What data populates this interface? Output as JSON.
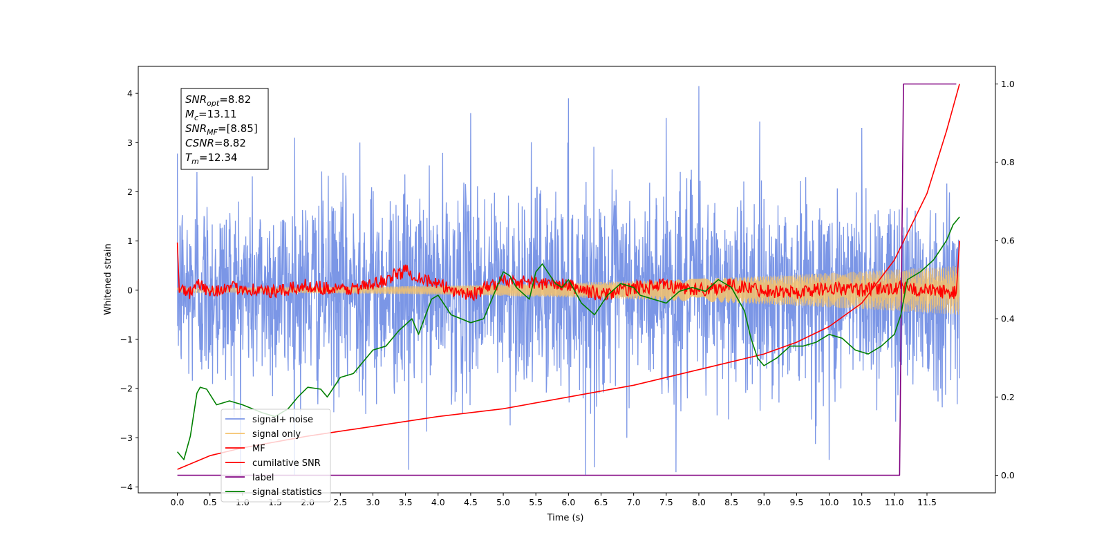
{
  "chart_data": {
    "type": "line",
    "xlabel": "Time (s)",
    "ylabel": "Whitened strain",
    "xlim": [
      -0.6,
      12.55
    ],
    "ylim": [
      -4.12,
      4.55
    ],
    "y2lim": [
      -0.045,
      1.045
    ],
    "xticks": [
      0.0,
      0.5,
      1.0,
      1.5,
      2.0,
      2.5,
      3.0,
      3.5,
      4.0,
      4.5,
      5.0,
      5.5,
      6.0,
      6.5,
      7.0,
      7.5,
      8.0,
      8.5,
      9.0,
      9.5,
      10.0,
      10.5,
      11.0,
      11.5
    ],
    "xtick_labels": [
      "0.0",
      "0.5",
      "1.0",
      "1.5",
      "2.0",
      "2.5",
      "3.0",
      "3.5",
      "4.0",
      "4.5",
      "5.0",
      "5.5",
      "6.0",
      "6.5",
      "7.0",
      "7.5",
      "8.0",
      "8.5",
      "9.0",
      "9.5",
      "10.0",
      "10.5",
      "11.0",
      "11.5"
    ],
    "yticks": [
      -4,
      -3,
      -2,
      -1,
      0,
      1,
      2,
      3,
      4
    ],
    "ytick_labels": [
      "−4",
      "−3",
      "−2",
      "−1",
      "0",
      "1",
      "2",
      "3",
      "4"
    ],
    "y2ticks": [
      0.0,
      0.2,
      0.4,
      0.6,
      0.8,
      1.0
    ],
    "y2tick_labels": [
      "0.0",
      "0.2",
      "0.4",
      "0.6",
      "0.8",
      "1.0"
    ],
    "grid": false,
    "legend_position": "lower-left",
    "annotation": {
      "lines": [
        {
          "main": "SNR",
          "sub": "opt",
          "value": "=8.82"
        },
        {
          "main": "M",
          "sub": "c",
          "value": "=13.11"
        },
        {
          "main": "SNR",
          "sub": "MF",
          "value": "=[8.85]"
        },
        {
          "main": "CSNR",
          "sub": "",
          "value": "=8.82"
        },
        {
          "main": "T",
          "sub": "m",
          "value": "=12.34"
        }
      ]
    },
    "series": [
      {
        "name": "signal+ noise",
        "axis": "left",
        "color": "#7b96e6",
        "description_values": {
          "x_start": 0.0,
          "x_end": 12.0,
          "amplitude_typical": 1.0,
          "peaks": [
            [
              0.3,
              2.4
            ],
            [
              1.8,
              3.1
            ],
            [
              2.8,
              3.0
            ],
            [
              4.5,
              3.6
            ],
            [
              6.0,
              3.9
            ],
            [
              7.5,
              3.5
            ],
            [
              8.0,
              4.15
            ],
            [
              10.5,
              3.3
            ],
            [
              3.55,
              -3.65
            ],
            [
              6.4,
              -3.6
            ],
            [
              7.65,
              -3.7
            ],
            [
              10.0,
              -3.45
            ]
          ]
        }
      },
      {
        "name": "signal only",
        "axis": "left",
        "color": "#f5c26b",
        "chirp": {
          "x_start": 0.0,
          "x_end": 12.0,
          "amplitude_start": 0.05,
          "amplitude_end": 0.5
        }
      },
      {
        "name": "MF",
        "axis": "left",
        "color": "#ff0000",
        "x": [
          0.0,
          0.03,
          0.08,
          0.15,
          0.3,
          0.5,
          1.0,
          1.5,
          2.0,
          2.5,
          3.0,
          3.5,
          4.0,
          4.5,
          5.0,
          5.5,
          6.0,
          6.5,
          7.0,
          7.5,
          8.0,
          8.5,
          9.0,
          9.5,
          10.0,
          10.5,
          11.0,
          11.5,
          11.95,
          12.0
        ],
        "y": [
          0.97,
          -0.05,
          0.1,
          -0.1,
          0.1,
          0.0,
          0.05,
          -0.05,
          0.1,
          0.0,
          0.1,
          0.4,
          0.1,
          -0.1,
          0.2,
          0.15,
          0.1,
          -0.1,
          0.05,
          0.1,
          0.0,
          0.1,
          0.0,
          -0.05,
          0.05,
          0.0,
          0.05,
          0.0,
          -0.05,
          1.0
        ]
      },
      {
        "name": "cumilative SNR",
        "axis": "right",
        "color": "#ff0000",
        "x": [
          0.0,
          0.5,
          1.0,
          2.0,
          3.0,
          4.0,
          5.0,
          6.0,
          7.0,
          8.0,
          9.0,
          9.5,
          10.0,
          10.5,
          11.0,
          11.5,
          11.8,
          12.0
        ],
        "y": [
          0.015,
          0.05,
          0.07,
          0.1,
          0.125,
          0.15,
          0.17,
          0.2,
          0.23,
          0.27,
          0.31,
          0.34,
          0.38,
          0.44,
          0.55,
          0.72,
          0.88,
          1.0
        ]
      },
      {
        "name": "label",
        "axis": "right",
        "color": "#800080",
        "x": [
          0.0,
          11.08,
          11.14,
          11.95
        ],
        "y": [
          0.0,
          0.0,
          1.0,
          1.0
        ]
      },
      {
        "name": "signal statistics",
        "axis": "right",
        "color": "#008000",
        "x": [
          0.0,
          0.1,
          0.2,
          0.3,
          0.35,
          0.45,
          0.6,
          0.8,
          1.0,
          1.3,
          1.5,
          1.7,
          1.85,
          2.0,
          2.2,
          2.3,
          2.5,
          2.7,
          2.9,
          3.0,
          3.2,
          3.4,
          3.6,
          3.7,
          3.9,
          4.0,
          4.2,
          4.5,
          4.7,
          4.9,
          5.0,
          5.1,
          5.2,
          5.4,
          5.5,
          5.6,
          5.8,
          5.9,
          6.0,
          6.2,
          6.4,
          6.6,
          6.8,
          7.0,
          7.1,
          7.3,
          7.5,
          7.7,
          7.9,
          8.1,
          8.3,
          8.5,
          8.7,
          8.8,
          8.9,
          9.0,
          9.2,
          9.4,
          9.6,
          9.8,
          10.0,
          10.2,
          10.4,
          10.6,
          10.8,
          11.0,
          11.1,
          11.2,
          11.4,
          11.6,
          11.8,
          11.9,
          12.0
        ],
        "y": [
          0.06,
          0.04,
          0.1,
          0.21,
          0.225,
          0.22,
          0.18,
          0.19,
          0.18,
          0.16,
          0.15,
          0.17,
          0.2,
          0.225,
          0.22,
          0.2,
          0.25,
          0.26,
          0.3,
          0.32,
          0.33,
          0.37,
          0.4,
          0.36,
          0.45,
          0.46,
          0.41,
          0.39,
          0.4,
          0.48,
          0.52,
          0.51,
          0.48,
          0.45,
          0.52,
          0.54,
          0.49,
          0.48,
          0.5,
          0.44,
          0.41,
          0.46,
          0.49,
          0.48,
          0.46,
          0.45,
          0.44,
          0.47,
          0.48,
          0.47,
          0.5,
          0.48,
          0.42,
          0.35,
          0.3,
          0.28,
          0.3,
          0.33,
          0.33,
          0.34,
          0.36,
          0.35,
          0.32,
          0.31,
          0.33,
          0.36,
          0.41,
          0.5,
          0.52,
          0.55,
          0.6,
          0.64,
          0.66
        ]
      }
    ]
  }
}
